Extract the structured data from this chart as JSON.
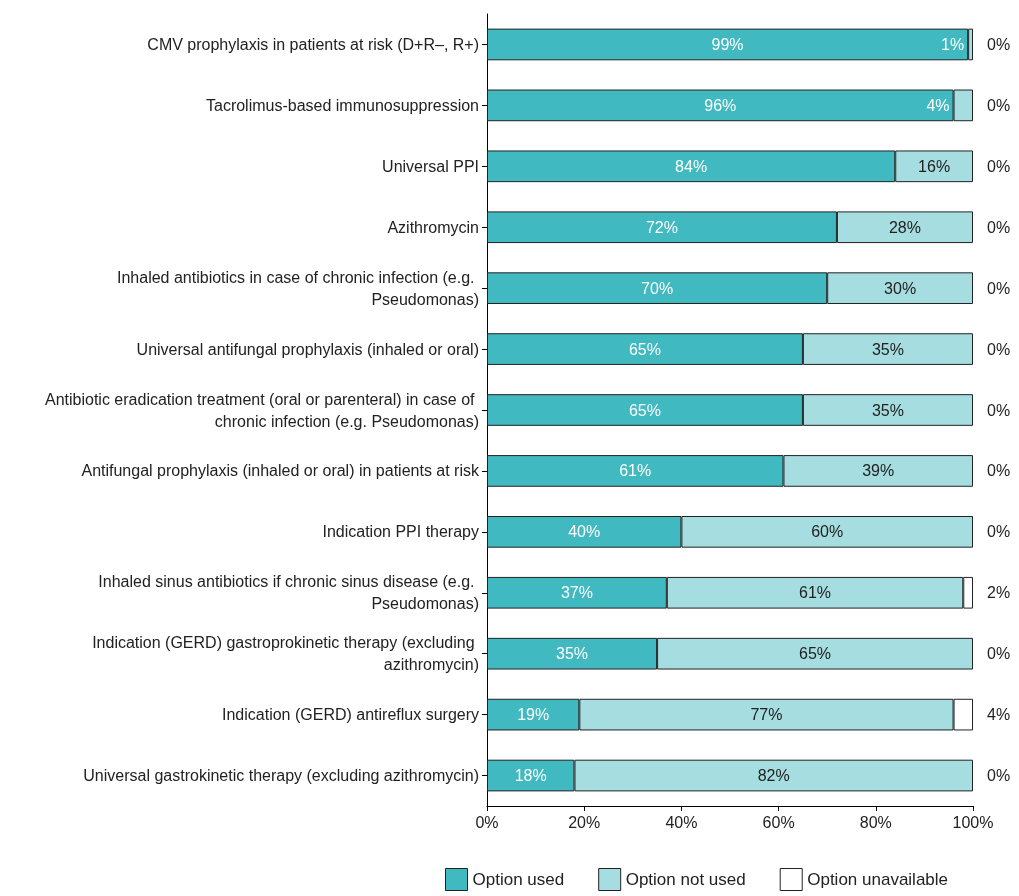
{
  "chart_data": {
    "type": "bar",
    "orientation": "horizontal",
    "stacked": true,
    "legend": "bottom",
    "grid": false,
    "categories": [
      "CMV prophylaxis in patients at risk (D+R–, R+)",
      "Tacrolimus-based immunosuppression",
      "Universal PPI",
      "Azithromycin",
      "Inhaled antibiotics in case of chronic infection (e.g. Pseudomonas)",
      "Universal antifungal prophylaxis (inhaled or oral)",
      "Antibiotic eradication treatment (oral or parenteral) in case of chronic infection (e.g. Pseudomonas)",
      "Antifungal prophylaxis (inhaled or oral) in patients at risk",
      "Indication PPI therapy",
      "Inhaled sinus antibiotics if chronic sinus disease (e.g. Pseudomonas)",
      "Indication (GERD) gastroprokinetic therapy (excluding azithromycin)",
      "Indication (GERD) antireflux surgery",
      "Universal gastrokinetic therapy (excluding azithromycin)"
    ],
    "xlim": [
      0,
      100
    ],
    "xticks": [
      {
        "value": 0,
        "label": "0%"
      },
      {
        "value": 20,
        "label": "20%"
      },
      {
        "value": 40,
        "label": "40%"
      },
      {
        "value": 60,
        "label": "60%"
      },
      {
        "value": 80,
        "label": "80%"
      },
      {
        "value": 100,
        "label": "100%"
      }
    ],
    "series": [
      {
        "name": "Option used",
        "color": "#41b9c1",
        "values": [
          99,
          96,
          84,
          72,
          70,
          65,
          65,
          61,
          40,
          37,
          35,
          19,
          18
        ],
        "value_labels": [
          "99%",
          "96%",
          "84%",
          "72%",
          "70%",
          "65%",
          "65%",
          "61%",
          "40%",
          "37%",
          "35%",
          "19%",
          "18%"
        ]
      },
      {
        "name": "Option not used",
        "color": "#a5dde0",
        "values": [
          1,
          4,
          16,
          28,
          30,
          35,
          35,
          39,
          60,
          61,
          65,
          77,
          82
        ],
        "value_labels": [
          "1%",
          "4%",
          "16%",
          "28%",
          "30%",
          "35%",
          "35%",
          "39%",
          "60%",
          "61%",
          "65%",
          "77%",
          "82%"
        ]
      },
      {
        "name": "Option unavailable",
        "color": "#ffffff",
        "values": [
          0,
          0,
          0,
          0,
          0,
          0,
          0,
          0,
          0,
          2,
          0,
          4,
          0
        ],
        "value_labels": [
          "0%",
          "0%",
          "0%",
          "0%",
          "0%",
          "0%",
          "0%",
          "0%",
          "0%",
          "2%",
          "0%",
          "4%",
          "0%"
        ]
      }
    ]
  }
}
